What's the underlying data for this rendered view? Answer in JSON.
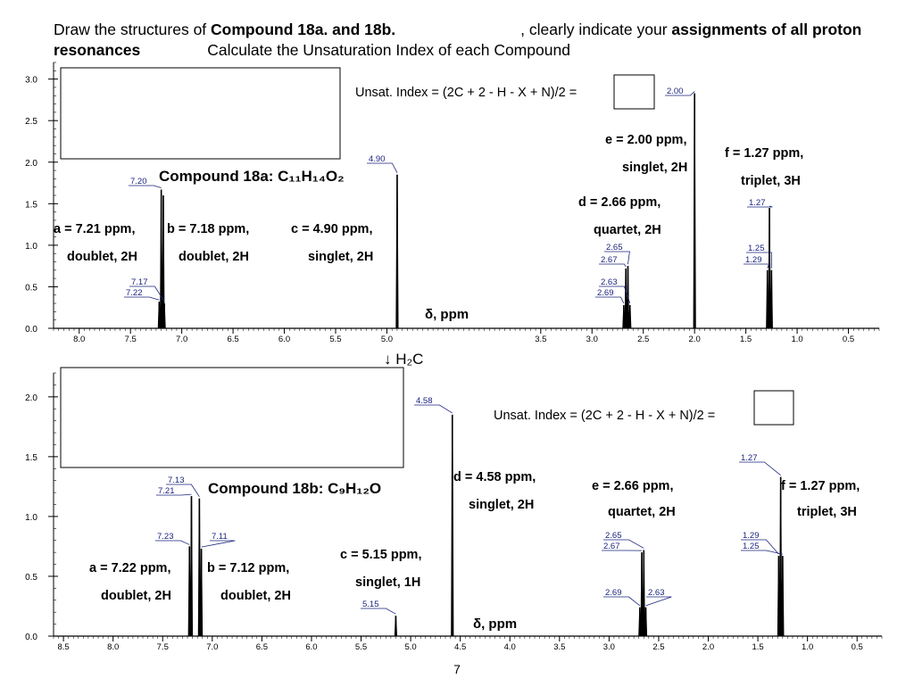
{
  "header": {
    "line1_a": "Draw the structures of ",
    "line1_b": "Compound 18a. and 18b.",
    "line1_c": ", clearly indicate your ",
    "line1_d": "assignments of all proton",
    "line2_a": "resonances",
    "line2_b": "Calculate the Unsaturation Index of each Compound"
  },
  "page_number": "7",
  "arrow_label": "↓  H₂C",
  "chart_data": [
    {
      "type": "line",
      "name": "Compound 18a",
      "formula_label": "Compound 18a: C₁₁H₁₄O₂",
      "unsat_label": "Unsat. Index = (2C + 2 - H - X + N)/2 =",
      "xlabel": "δ, ppm",
      "xlim": [
        8.25,
        0.2
      ],
      "ylim": [
        0,
        3.2
      ],
      "xticks": [
        "8.0",
        "7.5",
        "7.0",
        "6.5",
        "6.0",
        "5.5",
        "5.0",
        "3.5",
        "3.0",
        "2.5",
        "2.0",
        "1.5",
        "1.0",
        "0.5"
      ],
      "yticks": [
        "0.0",
        "0.5",
        "1.0",
        "1.5",
        "2.0",
        "2.5",
        "3.0"
      ],
      "peaks": [
        {
          "x": 7.22,
          "y": 0.32
        },
        {
          "x": 7.2,
          "y": 1.67
        },
        {
          "x": 7.18,
          "y": 1.6
        },
        {
          "x": 7.17,
          "y": 0.3
        },
        {
          "x": 4.9,
          "y": 1.85
        },
        {
          "x": 2.69,
          "y": 0.28
        },
        {
          "x": 2.67,
          "y": 0.72
        },
        {
          "x": 2.65,
          "y": 0.75
        },
        {
          "x": 2.63,
          "y": 0.28
        },
        {
          "x": 2.0,
          "y": 2.83
        },
        {
          "x": 1.29,
          "y": 0.7
        },
        {
          "x": 1.27,
          "y": 1.45
        },
        {
          "x": 1.25,
          "y": 0.7
        }
      ],
      "peak_labels": [
        "7.20",
        "7.17",
        "7.22",
        "4.90",
        "2.65",
        "2.67",
        "2.63",
        "2.69",
        "2.00",
        "1.27",
        "1.25",
        "1.29"
      ],
      "assignments": [
        [
          "a = 7.21 ppm,",
          "doublet, 2H"
        ],
        [
          "b = 7.18 ppm,",
          "doublet, 2H"
        ],
        [
          "c = 4.90 ppm,",
          "singlet, 2H"
        ],
        [
          "d = 2.66 ppm,",
          "quartet, 2H"
        ],
        [
          "e = 2.00 ppm,",
          "singlet, 2H"
        ],
        [
          "f = 1.27 ppm,",
          "triplet, 3H"
        ]
      ]
    },
    {
      "type": "line",
      "name": "Compound 18b",
      "formula_label": "Compound 18b: C₉H₁₂O",
      "unsat_label": "Unsat. Index = (2C + 2 - H - X + N)/2 =",
      "xlabel": "δ, ppm",
      "xlim": [
        8.6,
        0.25
      ],
      "ylim": [
        0,
        2.2
      ],
      "xticks": [
        "8.5",
        "8.0",
        "7.5",
        "7.0",
        "6.5",
        "6.0",
        "5.5",
        "5.0",
        "4.5",
        "4.0",
        "3.5",
        "3.0",
        "2.5",
        "2.0",
        "1.5",
        "1.0",
        "0.5"
      ],
      "yticks": [
        "0.0",
        "0.5",
        "1.0",
        "1.5",
        "2.0"
      ],
      "peaks": [
        {
          "x": 7.23,
          "y": 0.75
        },
        {
          "x": 7.21,
          "y": 1.17
        },
        {
          "x": 7.13,
          "y": 1.15
        },
        {
          "x": 7.11,
          "y": 0.73
        },
        {
          "x": 5.15,
          "y": 0.17
        },
        {
          "x": 4.58,
          "y": 1.85
        },
        {
          "x": 2.69,
          "y": 0.24
        },
        {
          "x": 2.67,
          "y": 0.7
        },
        {
          "x": 2.65,
          "y": 0.72
        },
        {
          "x": 2.63,
          "y": 0.24
        },
        {
          "x": 1.29,
          "y": 0.67
        },
        {
          "x": 1.27,
          "y": 1.33
        },
        {
          "x": 1.25,
          "y": 0.67
        }
      ],
      "peak_labels": [
        "7.13",
        "7.21",
        "7.23",
        "7.11",
        "5.15",
        "4.58",
        "2.65",
        "2.67",
        "2.69",
        "2.63",
        "1.27",
        "1.29",
        "1.25"
      ],
      "assignments": [
        [
          "a = 7.22 ppm,",
          "doublet, 2H"
        ],
        [
          "b = 7.12 ppm,",
          "doublet, 2H"
        ],
        [
          "c = 5.15 ppm,",
          "singlet, 1H"
        ],
        [
          "d = 4.58 ppm,",
          "singlet, 2H"
        ],
        [
          "e = 2.66 ppm,",
          "quartet, 2H"
        ],
        [
          "f = 1.27 ppm,",
          "triplet, 3H"
        ]
      ]
    }
  ]
}
